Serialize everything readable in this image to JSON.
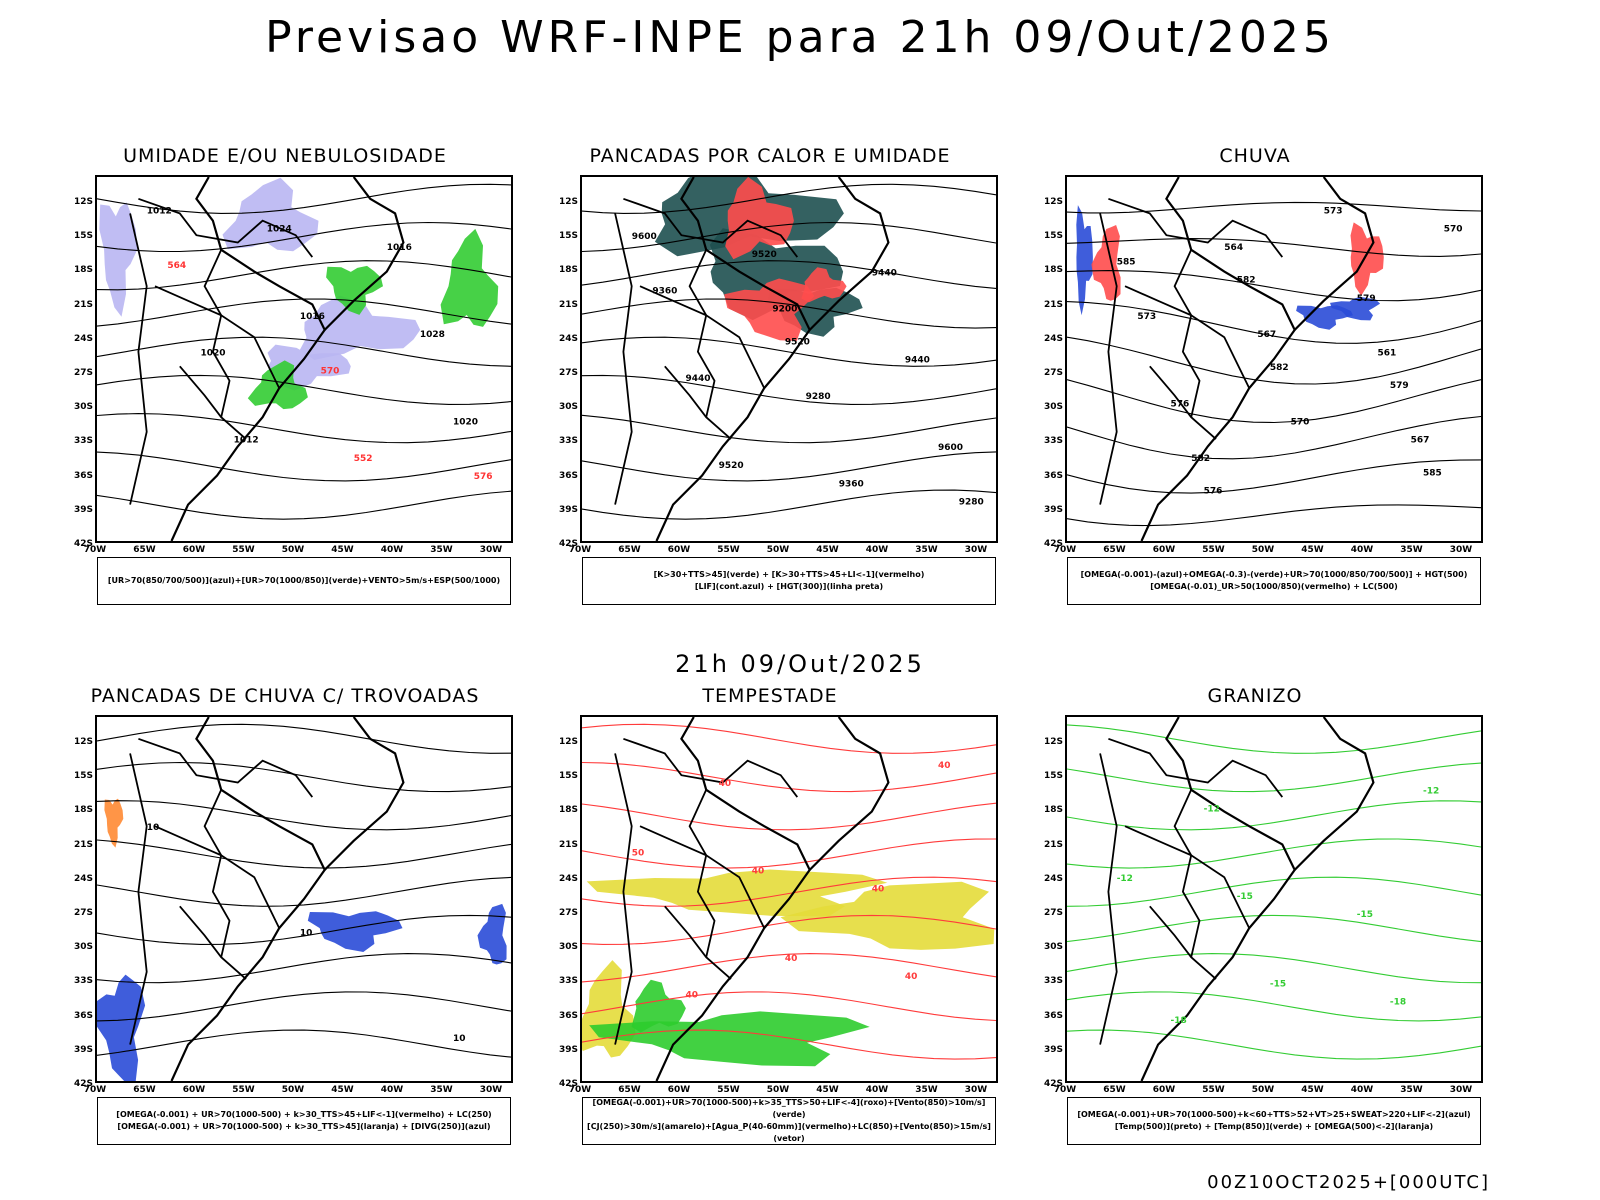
{
  "header": {
    "title": "Previsao WRF-INPE  para 21h 09/Out/2025",
    "mid_title": "21h 09/Out/2025",
    "footer": "00Z10OCT2025+[000UTC]"
  },
  "axes": {
    "lat_labels": [
      "12S",
      "15S",
      "18S",
      "21S",
      "24S",
      "27S",
      "30S",
      "33S",
      "36S",
      "39S",
      "42S"
    ],
    "lon_labels": [
      "70W",
      "65W",
      "60W",
      "55W",
      "50W",
      "45W",
      "40W",
      "35W",
      "30W"
    ]
  },
  "panels": [
    {
      "title": "UMIDADE E/OU NEBULOSIDADE",
      "legend_lines": [
        "[UR>70(850/700/500)](azul)+[UR>70(1000/850)](verde)+VENTO>5m/s+ESP(500/1000)"
      ],
      "contour_labels": [
        "1012",
        "1016",
        "1020",
        "1024",
        "1028",
        "1012",
        "1016",
        "1020",
        "552",
        "564",
        "570",
        "576"
      ],
      "colors": {
        "fill_primary": "#b9b6f2",
        "fill_secondary": "#33cc33",
        "line_primary": "#ff3333"
      }
    },
    {
      "title": "PANCADAS POR CALOR E UMIDADE",
      "legend_lines": [
        "[K>30+TTS>45](verde) + [K>30+TTS>45+LI<-1](vermelho)",
        "[LIF](cont.azul) + [HGT(300)](linha preta)"
      ],
      "contour_labels": [
        "9600",
        "9520",
        "9600",
        "9520",
        "9440",
        "9520",
        "9440",
        "9440",
        "9360",
        "9360",
        "9280",
        "9280",
        "9200"
      ],
      "colors": {
        "fill_primary": "#1e5050",
        "fill_secondary": "#ff4d4d",
        "line_primary": "#2a4bd7"
      }
    },
    {
      "title": "CHUVA",
      "legend_lines": [
        "[OMEGA(-0.001)-(azul)+OMEGA(-0.3)-(verde)+UR>70(1000/850/700/500)] + HGT(500)",
        "[OMEGA(-0.01)_UR>50(1000/850)(vermelho) + LC(500)"
      ],
      "contour_labels": [
        "585",
        "582",
        "585",
        "582",
        "579",
        "576",
        "579",
        "576",
        "573",
        "573",
        "570",
        "570",
        "567",
        "567",
        "564",
        "561",
        "582"
      ],
      "colors": {
        "fill_primary": "#2a4bd7",
        "fill_secondary": "#ff4d4d",
        "line_primary": "#000000"
      }
    },
    {
      "title": "PANCADAS DE CHUVA C/ TROVOADAS",
      "legend_lines": [
        "[OMEGA(-0.001) + UR>70(1000-500) + k>30_TTS>45+LIF<-1](vermelho) + LC(250)",
        "[OMEGA(-0.001) + UR>70(1000-500) + k>30_TTS>45](laranja) + [DIVG(250)](azul)"
      ],
      "contour_labels": [
        "10",
        "10",
        "10"
      ],
      "colors": {
        "fill_primary": "#2a4bd7",
        "fill_secondary": "#ff8a33",
        "line_primary": "#000000"
      }
    },
    {
      "title": "TEMPESTADE",
      "legend_lines": [
        "[OMEGA(-0.001)+UR>70(1000-500)+k>35_TTS>50+LIF<-4](roxo)+[Vento(850)>10m/s](verde)",
        "[CJ(250)>30m/s](amarelo)+[Agua_P(40-60mm)](vermelho)+LC(850)+[Vento(850)>15m/s](vetor)"
      ],
      "contour_labels": [
        "50",
        "40",
        "40",
        "40",
        "40",
        "40",
        "40",
        "40"
      ],
      "colors": {
        "fill_primary": "#e4dc3a",
        "fill_secondary": "#2ecc2e",
        "line_primary": "#ff3b3b"
      }
    },
    {
      "title": "GRANIZO",
      "legend_lines": [
        "[OMEGA(-0.001)+UR>70(1000-500)+k<60+TTS>52+VT>25+SWEAT>220+LIF<-2](azul)",
        "[Temp(500)](preto) + [Temp(850)](verde) + [OMEGA(500)<-2](laranja)"
      ],
      "contour_labels": [
        "-12",
        "-15",
        "-12",
        "-15",
        "-18",
        "-12",
        "-15",
        "-18"
      ],
      "colors": {
        "fill_primary": "#33cc33",
        "fill_secondary": "#33cc33",
        "line_primary": "#33cc33"
      }
    }
  ]
}
